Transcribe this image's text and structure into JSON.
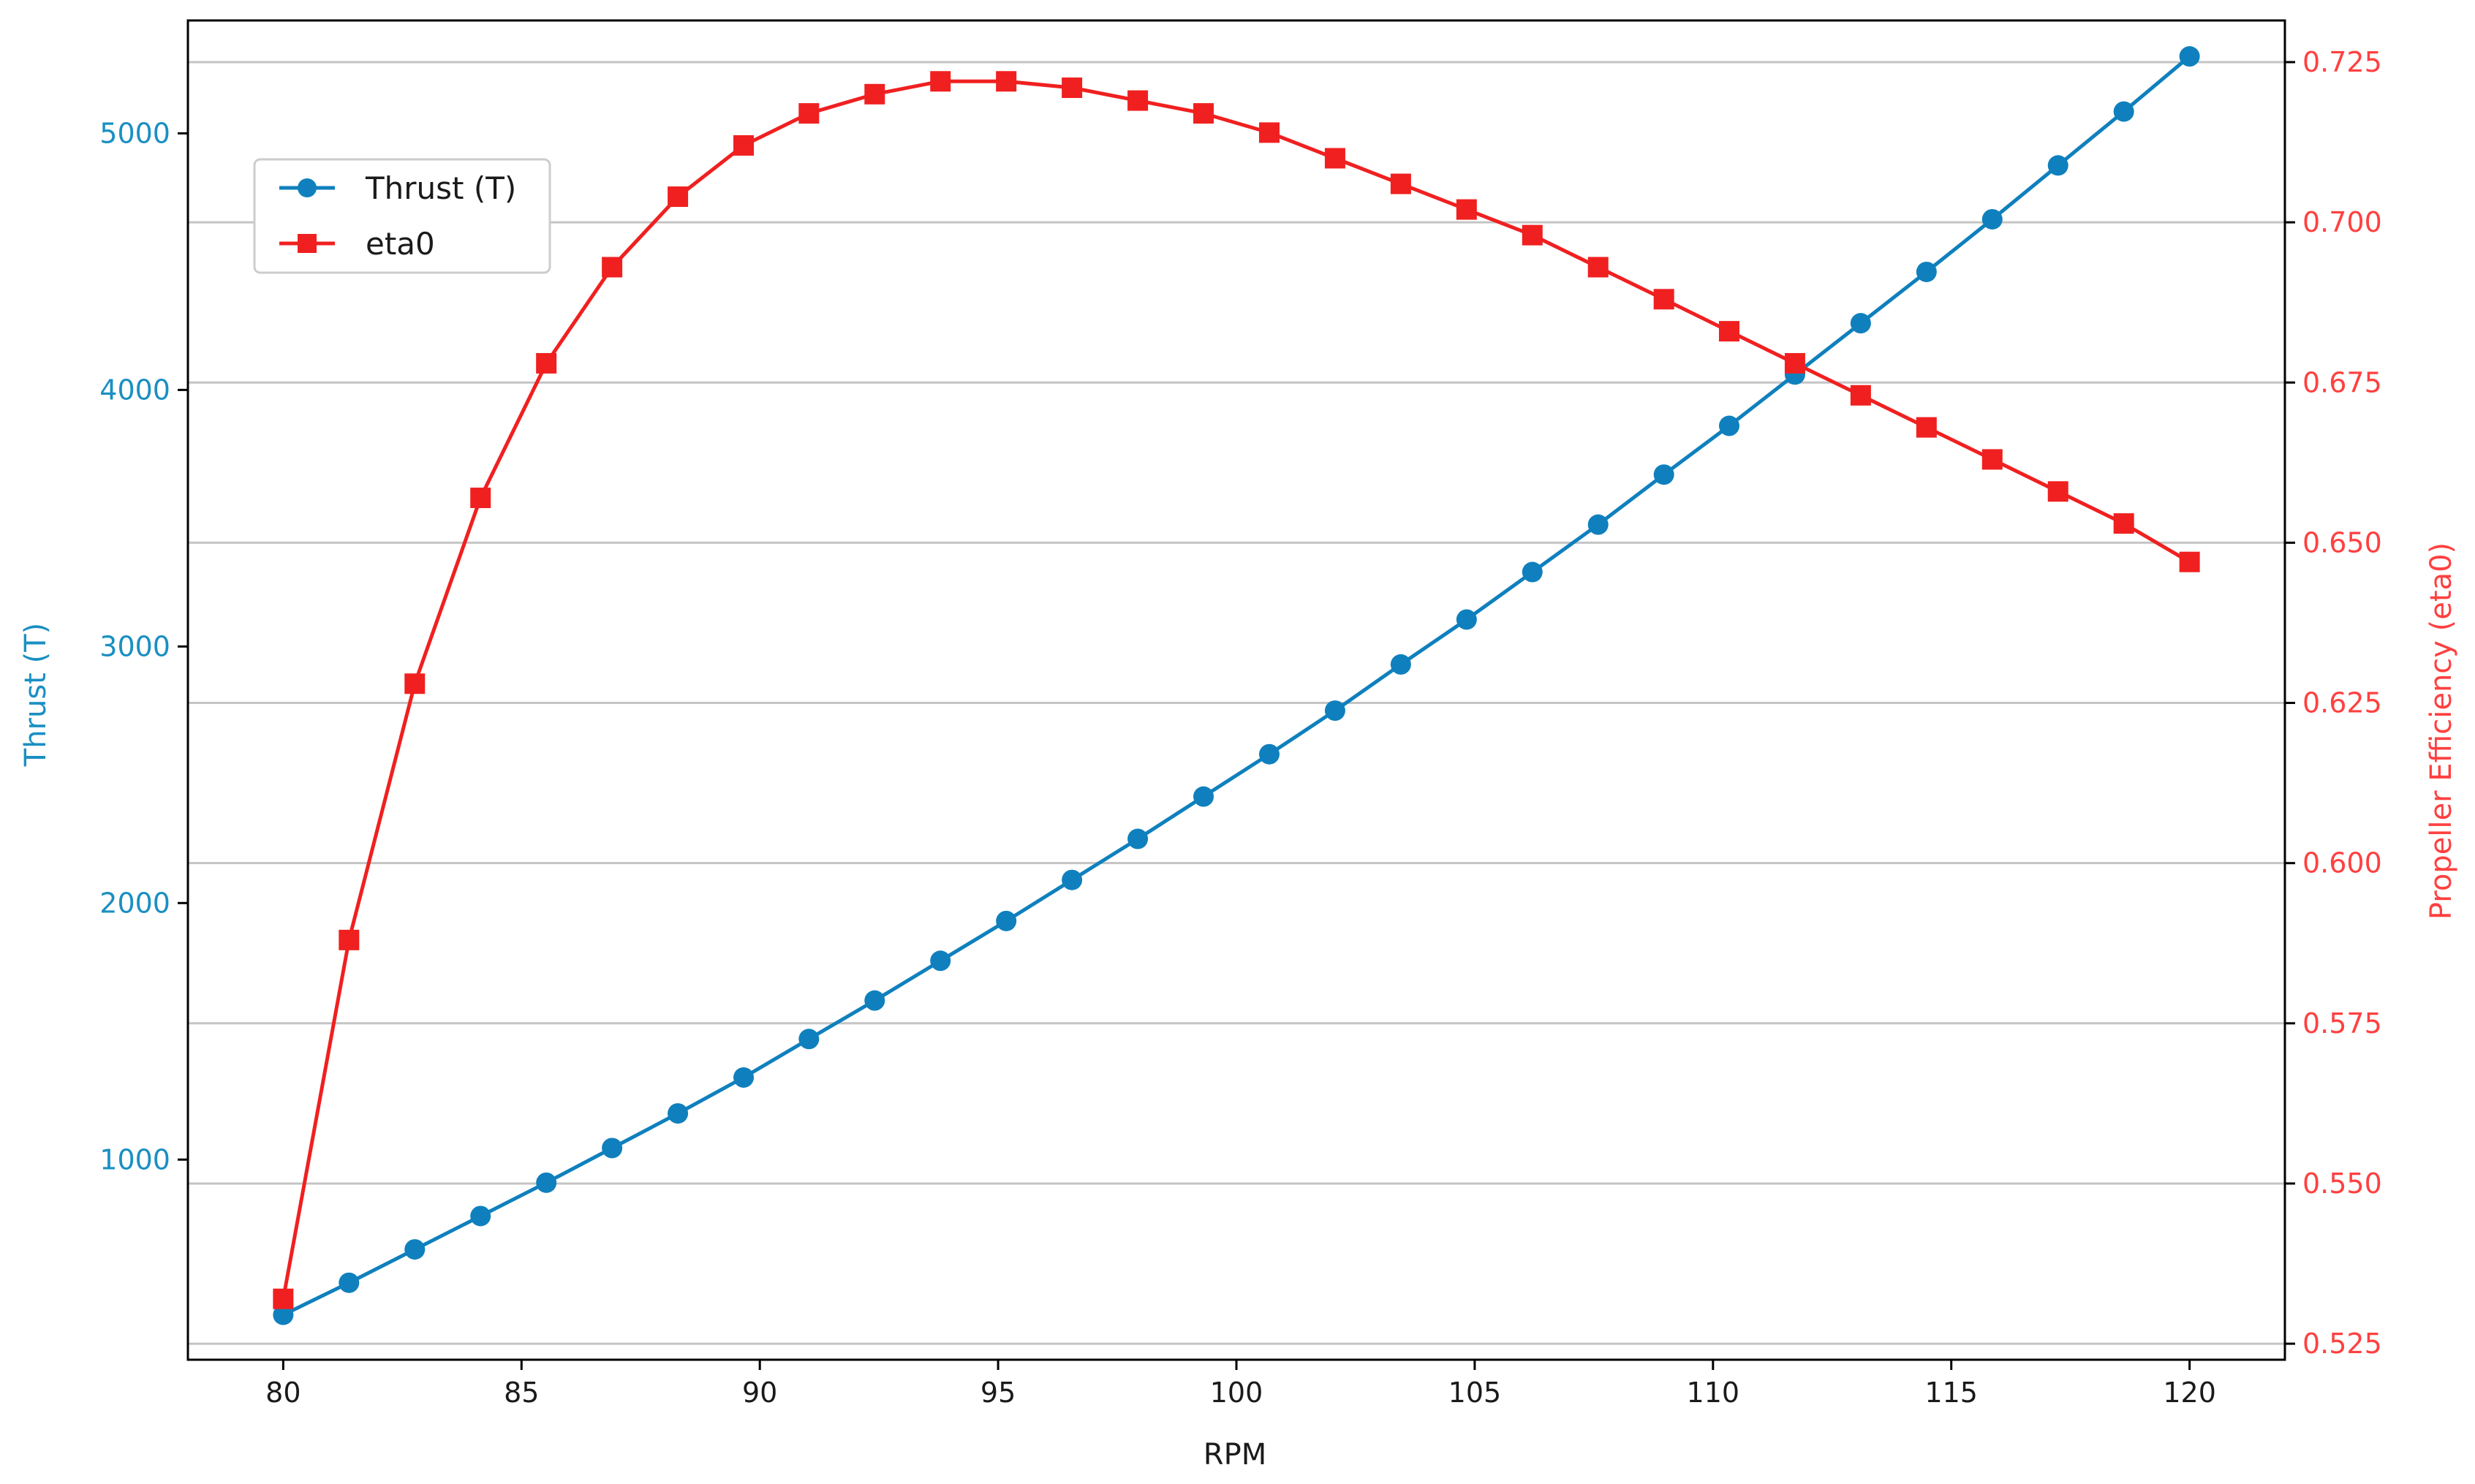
{
  "chart_data": {
    "type": "line",
    "title": "",
    "xlabel": "RPM",
    "ylabel_left": "Thrust (T)",
    "ylabel_right": "Propeller Efficiency (eta0)",
    "xlim": [
      78,
      122
    ],
    "ylim_left": [
      220,
      5440
    ],
    "ylim_right": [
      0.5225,
      0.7315
    ],
    "x_ticks": [
      80,
      85,
      90,
      95,
      100,
      105,
      110,
      115,
      120
    ],
    "x_tick_labels": [
      "80",
      "85",
      "90",
      "95",
      "100",
      "105",
      "110",
      "115",
      "120"
    ],
    "y_left_ticks": [
      1000,
      2000,
      3000,
      4000,
      5000
    ],
    "y_left_tick_labels": [
      "1000",
      "2000",
      "3000",
      "4000",
      "5000"
    ],
    "y_right_ticks": [
      0.525,
      0.55,
      0.575,
      0.6,
      0.625,
      0.65,
      0.675,
      0.7,
      0.725
    ],
    "y_right_tick_labels": [
      "0.525",
      "0.550",
      "0.575",
      "0.600",
      "0.625",
      "0.650",
      "0.675",
      "0.700",
      "0.725"
    ],
    "grid": "horizontal lines at right-axis ticks",
    "legend_position": "upper-left",
    "x": [
      80.0,
      81.38,
      82.76,
      84.14,
      85.52,
      86.9,
      88.28,
      89.66,
      91.03,
      92.41,
      93.79,
      95.17,
      96.55,
      97.93,
      99.31,
      100.69,
      102.07,
      103.45,
      104.83,
      106.21,
      107.59,
      108.97,
      110.34,
      111.72,
      113.1,
      114.48,
      115.86,
      117.24,
      118.62,
      120.0
    ],
    "series": [
      {
        "name": "Thrust (T)",
        "axis": "left",
        "color": "#0f80bd",
        "marker": "circle",
        "values": [
          395,
          520,
          650,
          780,
          910,
          1045,
          1180,
          1320,
          1470,
          1620,
          1775,
          1930,
          2090,
          2250,
          2415,
          2580,
          2750,
          2930,
          3105,
          3290,
          3475,
          3670,
          3860,
          4060,
          4260,
          4460,
          4665,
          4875,
          5085,
          5300
        ]
      },
      {
        "name": "eta0",
        "axis": "right",
        "color": "#f02020",
        "marker": "square",
        "values": [
          0.532,
          0.588,
          0.628,
          0.657,
          0.678,
          0.693,
          0.704,
          0.712,
          0.717,
          0.72,
          0.722,
          0.722,
          0.721,
          0.719,
          0.717,
          0.714,
          0.71,
          0.706,
          0.702,
          0.698,
          0.693,
          0.688,
          0.683,
          0.678,
          0.673,
          0.668,
          0.663,
          0.658,
          0.653,
          0.647
        ]
      }
    ]
  },
  "colors": {
    "left_axis": "#1a8fc2",
    "right_axis": "#ff4040",
    "grid": "#c4c4c4",
    "frame": "#000000"
  }
}
